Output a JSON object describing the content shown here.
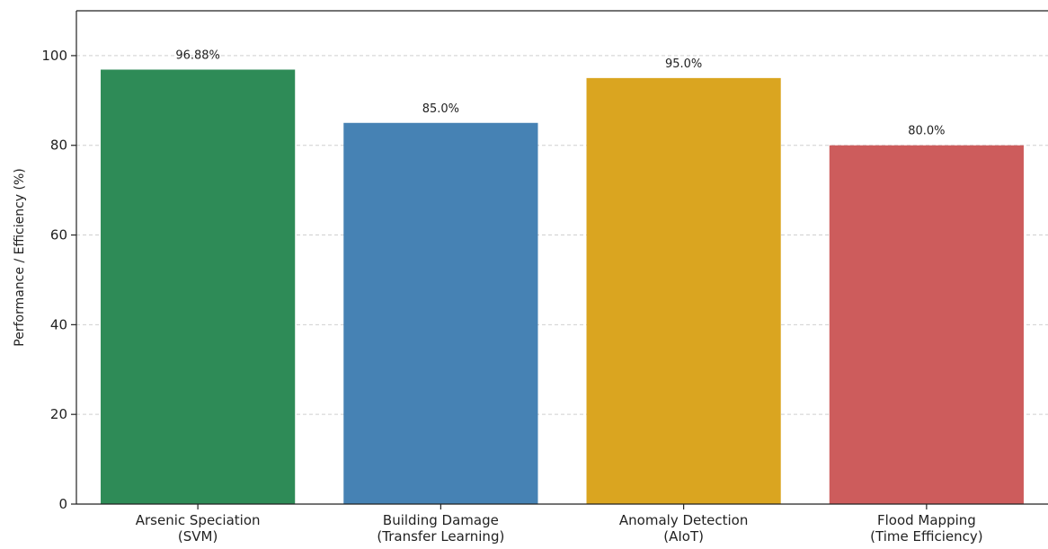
{
  "chart_data": {
    "type": "bar",
    "title": "",
    "xlabel": "",
    "ylabel": "Performance / Efficiency (%)",
    "ylim": [
      0,
      110
    ],
    "yticks": [
      0,
      20,
      40,
      60,
      80,
      100
    ],
    "grid": "y-dashed",
    "categories": [
      [
        "Arsenic Speciation",
        "(SVM)"
      ],
      [
        "Building Damage",
        "(Transfer Learning)"
      ],
      [
        "Anomaly Detection",
        "(AIoT)"
      ],
      [
        "Flood Mapping",
        "(Time Efficiency)"
      ]
    ],
    "values": [
      96.88,
      85.0,
      95.0,
      80.0
    ],
    "value_labels": [
      "96.88%",
      "85.0%",
      "95.0%",
      "80.0%"
    ],
    "colors": [
      "#2e8b57",
      "#4682b4",
      "#daa520",
      "#cd5c5c"
    ]
  }
}
